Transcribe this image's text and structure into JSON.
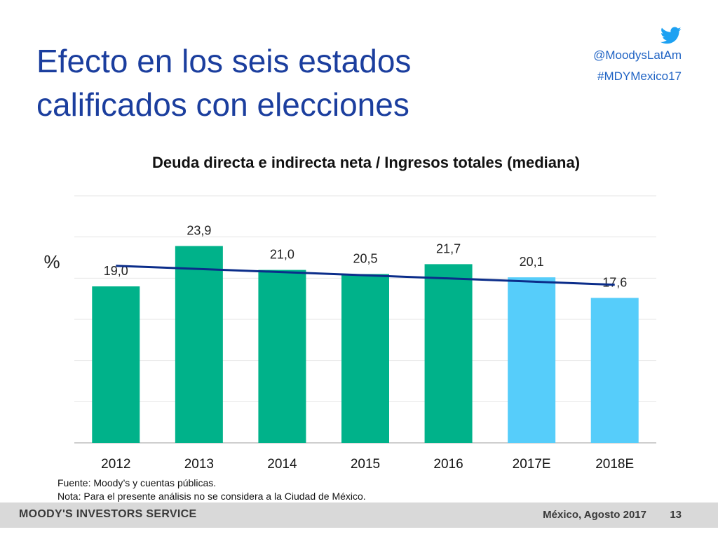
{
  "slide": {
    "title_line1": "Efecto en los seis estados",
    "title_line2": "calificados con elecciones",
    "twitter_icon": "twitter-bird-icon",
    "twitter_handle": "@MoodysLatAm",
    "hashtag": "#MDYMexico17"
  },
  "chart_data": {
    "type": "bar",
    "title": "Deuda directa e indirecta neta / Ingresos totales (mediana)",
    "ylabel": "%",
    "categories": [
      "2012",
      "2013",
      "2014",
      "2015",
      "2016",
      "2017E",
      "2018E"
    ],
    "values": [
      19.0,
      23.9,
      21.0,
      20.5,
      21.7,
      20.1,
      17.6
    ],
    "value_labels": [
      "19,0",
      "23,9",
      "21,0",
      "20,5",
      "21,7",
      "20,1",
      "17,6"
    ],
    "bar_colors": [
      "#00b28a",
      "#00b28a",
      "#00b28a",
      "#00b28a",
      "#00b28a",
      "#56cdfa",
      "#56cdfa"
    ],
    "trendline": {
      "start": 21.5,
      "end": 19.2,
      "color": "#0b2d8a"
    },
    "ylim": [
      0,
      30
    ],
    "grid": true,
    "legend": "none"
  },
  "footnotes": {
    "source": "Fuente: Moody’s y cuentas públicas.",
    "note": "Nota: Para el presente análisis no se considera a la Ciudad de México."
  },
  "footer": {
    "brand": "MOODY'S INVESTORS SERVICE",
    "date": "México, Agosto 2017",
    "page": "13"
  }
}
